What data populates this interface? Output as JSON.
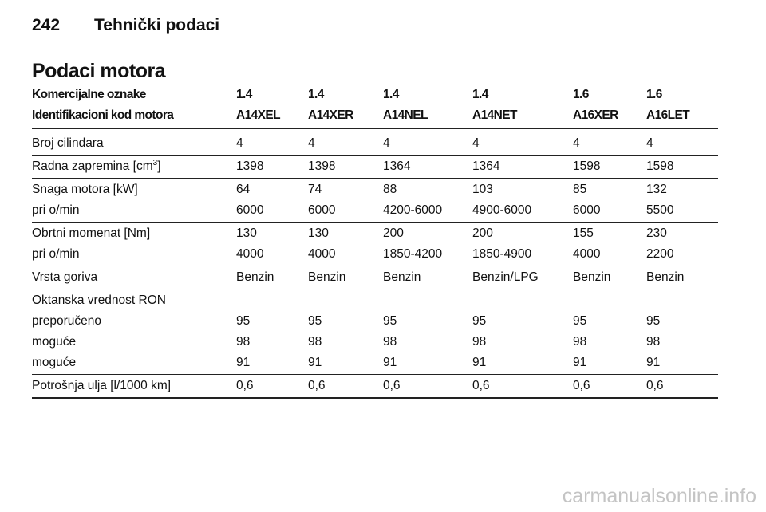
{
  "header": {
    "page_number": "242",
    "title": "Tehnički podaci"
  },
  "section_title": "Podaci motora",
  "table": {
    "header_rows": [
      [
        "Komercijalne oznake",
        "1.4",
        "1.4",
        "1.4",
        "1.4",
        "1.6",
        "1.6"
      ],
      [
        "Identifikacioni kod motora",
        "A14XEL",
        "A14XER",
        "A14NEL",
        "A14NET",
        "A16XER",
        "A16LET"
      ]
    ],
    "groups": [
      {
        "rows": [
          [
            "Broj cilindara",
            "4",
            "4",
            "4",
            "4",
            "4",
            "4"
          ]
        ]
      },
      {
        "rows": [
          [
            {
              "text": "Radna zapremina [cm",
              "sup": "3",
              "after": "]"
            },
            "1398",
            "1398",
            "1364",
            "1364",
            "1598",
            "1598"
          ]
        ]
      },
      {
        "rows": [
          [
            "Snaga motora [kW]",
            "64",
            "74",
            "88",
            "103",
            "85",
            "132"
          ],
          [
            "pri o/min",
            "6000",
            "6000",
            "4200-6000",
            "4900-6000",
            "6000",
            "5500"
          ]
        ]
      },
      {
        "rows": [
          [
            "Obrtni momenat [Nm]",
            "130",
            "130",
            "200",
            "200",
            "155",
            "230"
          ],
          [
            "pri o/min",
            "4000",
            "4000",
            "1850-4200",
            "1850-4900",
            "4000",
            "2200"
          ]
        ]
      },
      {
        "rows": [
          [
            "Vrsta goriva",
            "Benzin",
            "Benzin",
            "Benzin",
            "Benzin/LPG",
            "Benzin",
            "Benzin"
          ]
        ]
      },
      {
        "rows": [
          [
            "Oktanska vrednost RON"
          ],
          [
            "preporučeno",
            "95",
            "95",
            "95",
            "95",
            "95",
            "95"
          ],
          [
            "moguće",
            "98",
            "98",
            "98",
            "98",
            "98",
            "98"
          ],
          [
            "moguće",
            "91",
            "91",
            "91",
            "91",
            "91",
            "91"
          ]
        ]
      },
      {
        "rows": [
          [
            "Potrošnja ulja [l/1000 km]",
            "0,6",
            "0,6",
            "0,6",
            "0,6",
            "0,6",
            "0,6"
          ]
        ]
      }
    ]
  },
  "watermark": "carmanualsonline.info"
}
